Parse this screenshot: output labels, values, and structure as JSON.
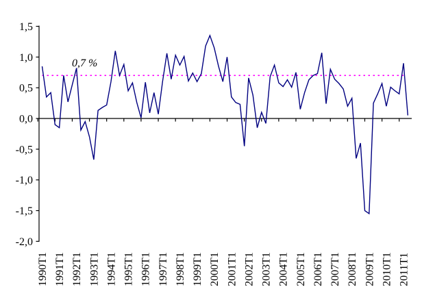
{
  "chart_data": {
    "type": "line",
    "title": "",
    "x_range": "1990T1 to 2011T2",
    "x_frequency": "quarterly",
    "x_tick_labels": [
      "1990T1",
      "1991T1",
      "1992T1",
      "1993T1",
      "1994T1",
      "1995T1",
      "1996T1",
      "1997T1",
      "1998T1",
      "1999T1",
      "2000T1",
      "2001T1",
      "2002T1",
      "2003T1",
      "2004T1",
      "2005T1",
      "2006T1",
      "2007T1",
      "2008T1",
      "2009T1",
      "2010T1",
      "2011T1"
    ],
    "y_tick_labels": [
      "1,5",
      "1,0",
      "0,5",
      "0,0",
      "-0,5",
      "-1,0",
      "-1,5",
      "-2,0"
    ],
    "y_ticks": [
      1.5,
      1.0,
      0.5,
      0.0,
      -0.5,
      -1.0,
      -1.5,
      -2.0
    ],
    "ylim": [
      -2.0,
      1.5
    ],
    "grid": false,
    "legend": "none",
    "reference_line": {
      "value": 0.7,
      "label": "0,7 %",
      "color": "#FF00FF",
      "style": "dotted"
    },
    "series": [
      {
        "color": "#000080",
        "values": [
          0.85,
          0.35,
          0.42,
          -0.1,
          -0.15,
          0.7,
          0.27,
          0.55,
          0.82,
          -0.19,
          -0.05,
          -0.3,
          -0.67,
          0.13,
          0.18,
          0.22,
          0.6,
          1.1,
          0.7,
          0.88,
          0.45,
          0.58,
          0.26,
          0.01,
          0.59,
          0.09,
          0.42,
          0.07,
          0.6,
          1.06,
          0.64,
          1.03,
          0.87,
          1.01,
          0.61,
          0.74,
          0.6,
          0.73,
          1.18,
          1.35,
          1.15,
          0.85,
          0.6,
          1.0,
          0.35,
          0.26,
          0.23,
          -0.45,
          0.66,
          0.38,
          -0.15,
          0.1,
          -0.08,
          0.68,
          0.87,
          0.58,
          0.52,
          0.63,
          0.51,
          0.75,
          0.15,
          0.42,
          0.63,
          0.7,
          0.73,
          1.07,
          0.24,
          0.8,
          0.64,
          0.57,
          0.48,
          0.2,
          0.33,
          -0.65,
          -0.4,
          -1.5,
          -1.55,
          0.25,
          0.4,
          0.57,
          0.2,
          0.51,
          0.45,
          0.4,
          0.9,
          0.05
        ]
      }
    ]
  },
  "colors": {
    "series_line": "#000080",
    "reference_line": "#FF00FF",
    "axis": "#000000",
    "background": "#FFFFFF"
  }
}
